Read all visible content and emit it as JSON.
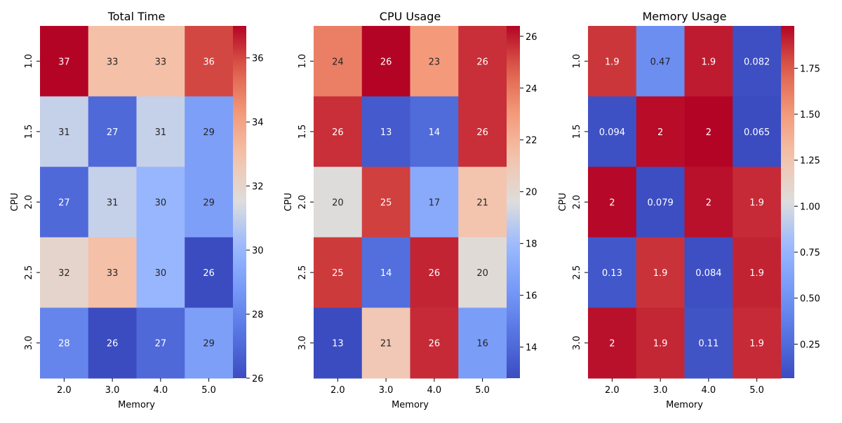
{
  "chart_data": [
    {
      "type": "heatmap",
      "title": "Total Time",
      "xlabel": "Memory",
      "ylabel": "CPU",
      "x": [
        "2.0",
        "3.0",
        "4.0",
        "5.0"
      ],
      "y": [
        "1.0",
        "1.5",
        "2.0",
        "2.5",
        "3.0"
      ],
      "values": [
        [
          37,
          33,
          33,
          36
        ],
        [
          31,
          27,
          31,
          29
        ],
        [
          27,
          31,
          30,
          29
        ],
        [
          32,
          33,
          30,
          26
        ],
        [
          28,
          26,
          27,
          29
        ]
      ],
      "labels": [
        [
          "37",
          "33",
          "33",
          "36"
        ],
        [
          "31",
          "27",
          "31",
          "29"
        ],
        [
          "27",
          "31",
          "30",
          "29"
        ],
        [
          "32",
          "33",
          "30",
          "26"
        ],
        [
          "28",
          "26",
          "27",
          "29"
        ]
      ],
      "colorbar_range": [
        26,
        37
      ],
      "colorbar_ticks": [
        26,
        28,
        30,
        32,
        34,
        36
      ],
      "colormap": "coolwarm"
    },
    {
      "type": "heatmap",
      "title": "CPU Usage",
      "xlabel": "Memory",
      "ylabel": "CPU",
      "x": [
        "2.0",
        "3.0",
        "4.0",
        "5.0"
      ],
      "y": [
        "1.0",
        "1.5",
        "2.0",
        "2.5",
        "3.0"
      ],
      "values": [
        [
          23.8,
          26.4,
          23.0,
          25.6
        ],
        [
          25.6,
          13.4,
          14.1,
          25.6
        ],
        [
          19.7,
          25.3,
          17.1,
          21.2
        ],
        [
          25.4,
          14.3,
          25.8,
          19.8
        ],
        [
          12.8,
          21.0,
          25.7,
          16.4
        ]
      ],
      "labels": [
        [
          "24",
          "26",
          "23",
          "26"
        ],
        [
          "26",
          "13",
          "14",
          "26"
        ],
        [
          "20",
          "25",
          "17",
          "21"
        ],
        [
          "25",
          "14",
          "26",
          "20"
        ],
        [
          "13",
          "21",
          "26",
          "16"
        ]
      ],
      "colorbar_range": [
        12.8,
        26.4
      ],
      "colorbar_ticks": [
        14,
        16,
        18,
        20,
        22,
        24,
        26
      ],
      "colormap": "coolwarm"
    },
    {
      "type": "heatmap",
      "title": "Memory Usage",
      "xlabel": "Memory",
      "ylabel": "CPU",
      "x": [
        "2.0",
        "3.0",
        "4.0",
        "5.0"
      ],
      "y": [
        "1.0",
        "1.5",
        "2.0",
        "2.5",
        "3.0"
      ],
      "values": [
        [
          1.85,
          0.47,
          1.92,
          0.082
        ],
        [
          0.094,
          1.96,
          1.98,
          0.065
        ],
        [
          1.97,
          0.079,
          1.95,
          1.88
        ],
        [
          0.13,
          1.86,
          0.084,
          1.9
        ],
        [
          1.95,
          1.89,
          0.11,
          1.88
        ]
      ],
      "labels": [
        [
          "1.9",
          "0.47",
          "1.9",
          "0.082"
        ],
        [
          "0.094",
          "2",
          "2",
          "0.065"
        ],
        [
          "2",
          "0.079",
          "2",
          "1.9"
        ],
        [
          "0.13",
          "1.9",
          "0.084",
          "1.9"
        ],
        [
          "2",
          "1.9",
          "0.11",
          "1.9"
        ]
      ],
      "colorbar_range": [
        0.065,
        1.98
      ],
      "colorbar_ticks": [
        0.25,
        0.5,
        0.75,
        1.0,
        1.25,
        1.5,
        1.75
      ],
      "colorbar_tick_labels": [
        "0.25",
        "0.50",
        "0.75",
        "1.00",
        "1.25",
        "1.50",
        "1.75"
      ],
      "colormap": "coolwarm"
    }
  ]
}
